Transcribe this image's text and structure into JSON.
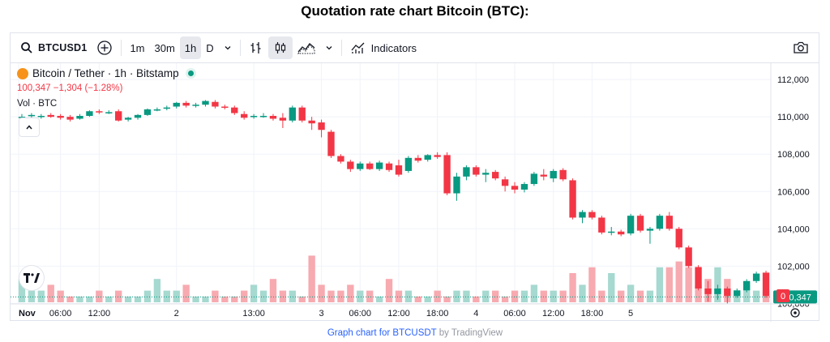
{
  "page_title": "Quotation rate chart Bitcoin (BTC):",
  "toolbar": {
    "symbol": "BTCUSD1",
    "intervals": [
      "1m",
      "30m",
      "1h",
      "D"
    ],
    "active_interval": "1h",
    "indicators_label": "Indicators",
    "icons": [
      "search-icon",
      "add-symbol-icon",
      "chevron-down-icon",
      "bar-chart-icon",
      "candles-icon",
      "area-chart-icon",
      "indicators-icon",
      "camera-icon"
    ]
  },
  "legend": {
    "title": "Bitcoin / Tether · 1h · Bitstamp",
    "price_change": "100,347 −1,304 (−1.28%)",
    "volume_label": "Vol · BTC"
  },
  "colors": {
    "up": "#089981",
    "down": "#f23645",
    "up_volume": "#a6d9d0",
    "down_volume": "#f7aab0"
  },
  "chart_data": {
    "type": "candlestick",
    "y_axis_labels": [
      "112,000",
      "110,000",
      "108,000",
      "106,000",
      "104,000",
      "102,000",
      "100,000"
    ],
    "ylim": [
      99800,
      112700
    ],
    "last_price_label": "100,347",
    "volume_label": "0",
    "x_tick_labels": [
      "Nov",
      "06:00",
      "12:00",
      "2",
      "13:00",
      "3",
      "06:00",
      "12:00",
      "18:00",
      "4",
      "06:00",
      "12:00",
      "18:00",
      "5"
    ],
    "candles": [
      {
        "o": 110000,
        "h": 110150,
        "c": 110000,
        "l": 109850
      },
      {
        "o": 110050,
        "h": 110200,
        "c": 110100,
        "l": 109950
      },
      {
        "o": 110000,
        "h": 110150,
        "c": 110050,
        "l": 109900
      },
      {
        "o": 110100,
        "h": 110200,
        "c": 110000,
        "l": 109950
      },
      {
        "o": 110050,
        "h": 110150,
        "c": 109950,
        "l": 109850
      },
      {
        "o": 110000,
        "h": 110100,
        "c": 109850,
        "l": 109750
      },
      {
        "o": 109900,
        "h": 110150,
        "c": 110050,
        "l": 109850
      },
      {
        "o": 110050,
        "h": 110350,
        "c": 110300,
        "l": 110000
      },
      {
        "o": 110300,
        "h": 110400,
        "c": 110250,
        "l": 110150
      },
      {
        "o": 110200,
        "h": 110350,
        "c": 110250,
        "l": 110150
      },
      {
        "o": 110300,
        "h": 110400,
        "c": 109800,
        "l": 109750
      },
      {
        "o": 109850,
        "h": 110000,
        "c": 109950,
        "l": 109750
      },
      {
        "o": 109950,
        "h": 110150,
        "c": 110100,
        "l": 109850
      },
      {
        "o": 110100,
        "h": 110450,
        "c": 110400,
        "l": 110050
      },
      {
        "o": 110400,
        "h": 110500,
        "c": 110400,
        "l": 110300
      },
      {
        "o": 110450,
        "h": 110600,
        "c": 110500,
        "l": 110350
      },
      {
        "o": 110550,
        "h": 110800,
        "c": 110750,
        "l": 110450
      },
      {
        "o": 110750,
        "h": 110850,
        "c": 110600,
        "l": 110500
      },
      {
        "o": 110600,
        "h": 110750,
        "c": 110650,
        "l": 110500
      },
      {
        "o": 110650,
        "h": 110900,
        "c": 110850,
        "l": 110550
      },
      {
        "o": 110800,
        "h": 110900,
        "c": 110550,
        "l": 110450
      },
      {
        "o": 110550,
        "h": 110650,
        "c": 110500,
        "l": 110400
      },
      {
        "o": 110500,
        "h": 110600,
        "c": 110200,
        "l": 110100
      },
      {
        "o": 110150,
        "h": 110300,
        "c": 109950,
        "l": 109850
      },
      {
        "o": 110000,
        "h": 110150,
        "c": 110050,
        "l": 109900
      },
      {
        "o": 110050,
        "h": 110200,
        "c": 110050,
        "l": 109950
      },
      {
        "o": 110050,
        "h": 110150,
        "c": 109900,
        "l": 109800
      },
      {
        "o": 109950,
        "h": 110200,
        "c": 109800,
        "l": 109400
      },
      {
        "o": 109800,
        "h": 110600,
        "c": 110500,
        "l": 109700
      },
      {
        "o": 110500,
        "h": 110600,
        "c": 109800,
        "l": 109700
      },
      {
        "o": 109800,
        "h": 110000,
        "c": 109650,
        "l": 109300
      },
      {
        "o": 109700,
        "h": 109850,
        "c": 109300,
        "l": 108900
      },
      {
        "o": 109200,
        "h": 109300,
        "c": 107900,
        "l": 107800
      },
      {
        "o": 107900,
        "h": 108000,
        "c": 107600,
        "l": 107500
      },
      {
        "o": 107600,
        "h": 107700,
        "c": 107200,
        "l": 107050
      },
      {
        "o": 107200,
        "h": 107600,
        "c": 107500,
        "l": 107100
      },
      {
        "o": 107500,
        "h": 107600,
        "c": 107200,
        "l": 107150
      },
      {
        "o": 107200,
        "h": 107650,
        "c": 107550,
        "l": 107100
      },
      {
        "o": 107500,
        "h": 107600,
        "c": 107150,
        "l": 107050
      },
      {
        "o": 107400,
        "h": 107700,
        "c": 106900,
        "l": 106800
      },
      {
        "o": 107100,
        "h": 107900,
        "c": 107800,
        "l": 107000
      },
      {
        "o": 107800,
        "h": 107950,
        "c": 107650,
        "l": 107550
      },
      {
        "o": 107700,
        "h": 108000,
        "c": 107950,
        "l": 107600
      },
      {
        "o": 107950,
        "h": 108100,
        "c": 107850,
        "l": 107750
      },
      {
        "o": 107950,
        "h": 108100,
        "c": 105900,
        "l": 105800
      },
      {
        "o": 105900,
        "h": 107000,
        "c": 106800,
        "l": 105500
      },
      {
        "o": 106800,
        "h": 107400,
        "c": 107300,
        "l": 106600
      },
      {
        "o": 107300,
        "h": 107400,
        "c": 106900,
        "l": 106800
      },
      {
        "o": 106900,
        "h": 107200,
        "c": 107000,
        "l": 106500
      },
      {
        "o": 107050,
        "h": 107150,
        "c": 106700,
        "l": 106600
      },
      {
        "o": 106650,
        "h": 106800,
        "c": 106300,
        "l": 106000
      },
      {
        "o": 106300,
        "h": 106500,
        "c": 106100,
        "l": 105900
      },
      {
        "o": 106100,
        "h": 106500,
        "c": 106400,
        "l": 105950
      },
      {
        "o": 106400,
        "h": 107050,
        "c": 106950,
        "l": 106300
      },
      {
        "o": 106900,
        "h": 107200,
        "c": 106800,
        "l": 106600
      },
      {
        "o": 106700,
        "h": 107200,
        "c": 107100,
        "l": 106500
      },
      {
        "o": 107150,
        "h": 107250,
        "c": 106650,
        "l": 106550
      },
      {
        "o": 106600,
        "h": 106700,
        "c": 104600,
        "l": 104500
      },
      {
        "o": 104600,
        "h": 105000,
        "c": 104900,
        "l": 104300
      },
      {
        "o": 104900,
        "h": 105000,
        "c": 104600,
        "l": 104500
      },
      {
        "o": 104600,
        "h": 104700,
        "c": 103800,
        "l": 103700
      },
      {
        "o": 103800,
        "h": 104100,
        "c": 103850,
        "l": 103650
      },
      {
        "o": 103850,
        "h": 103950,
        "c": 103700,
        "l": 103600
      },
      {
        "o": 103750,
        "h": 104800,
        "c": 104700,
        "l": 103650
      },
      {
        "o": 104700,
        "h": 104800,
        "c": 103900,
        "l": 103800
      },
      {
        "o": 103900,
        "h": 104100,
        "c": 104000,
        "l": 103200
      },
      {
        "o": 104000,
        "h": 104800,
        "c": 104700,
        "l": 103900
      },
      {
        "o": 104700,
        "h": 104900,
        "c": 104000,
        "l": 103900
      },
      {
        "o": 104000,
        "h": 104100,
        "c": 103000,
        "l": 102900
      },
      {
        "o": 103000,
        "h": 103100,
        "c": 102000,
        "l": 101900
      },
      {
        "o": 101950,
        "h": 102050,
        "c": 100800,
        "l": 100700
      },
      {
        "o": 100800,
        "h": 101200,
        "c": 100500,
        "l": 100100
      },
      {
        "o": 100500,
        "h": 101000,
        "c": 100800,
        "l": 100200
      },
      {
        "o": 100800,
        "h": 100900,
        "c": 100400,
        "l": 100000
      },
      {
        "o": 100400,
        "h": 100800,
        "c": 100700,
        "l": 100300
      },
      {
        "o": 100700,
        "h": 101300,
        "c": 101200,
        "l": 100600
      },
      {
        "o": 101200,
        "h": 101700,
        "c": 101600,
        "l": 101100
      },
      {
        "o": 101650,
        "h": 101750,
        "c": 100400,
        "l": 100300
      }
    ],
    "volumes": [
      4,
      2,
      2,
      3,
      2,
      1,
      1,
      1,
      2,
      1,
      2,
      1,
      1,
      2,
      4,
      2,
      2,
      3,
      1,
      1,
      2,
      1,
      1,
      2,
      3,
      2,
      4,
      2,
      2,
      1,
      8,
      3,
      2,
      2,
      3,
      2,
      2,
      1,
      4,
      2,
      2,
      1,
      1,
      2,
      1,
      2,
      2,
      1,
      2,
      2,
      1,
      2,
      2,
      3,
      2,
      2,
      2,
      5,
      3,
      6,
      2,
      5,
      2,
      3,
      2,
      2,
      6,
      6,
      7,
      6,
      3,
      4,
      6,
      4,
      2,
      3,
      2,
      2
    ]
  },
  "footer": {
    "link_text": "Graph chart for BTCUSDT",
    "suffix": " by TradingView"
  }
}
